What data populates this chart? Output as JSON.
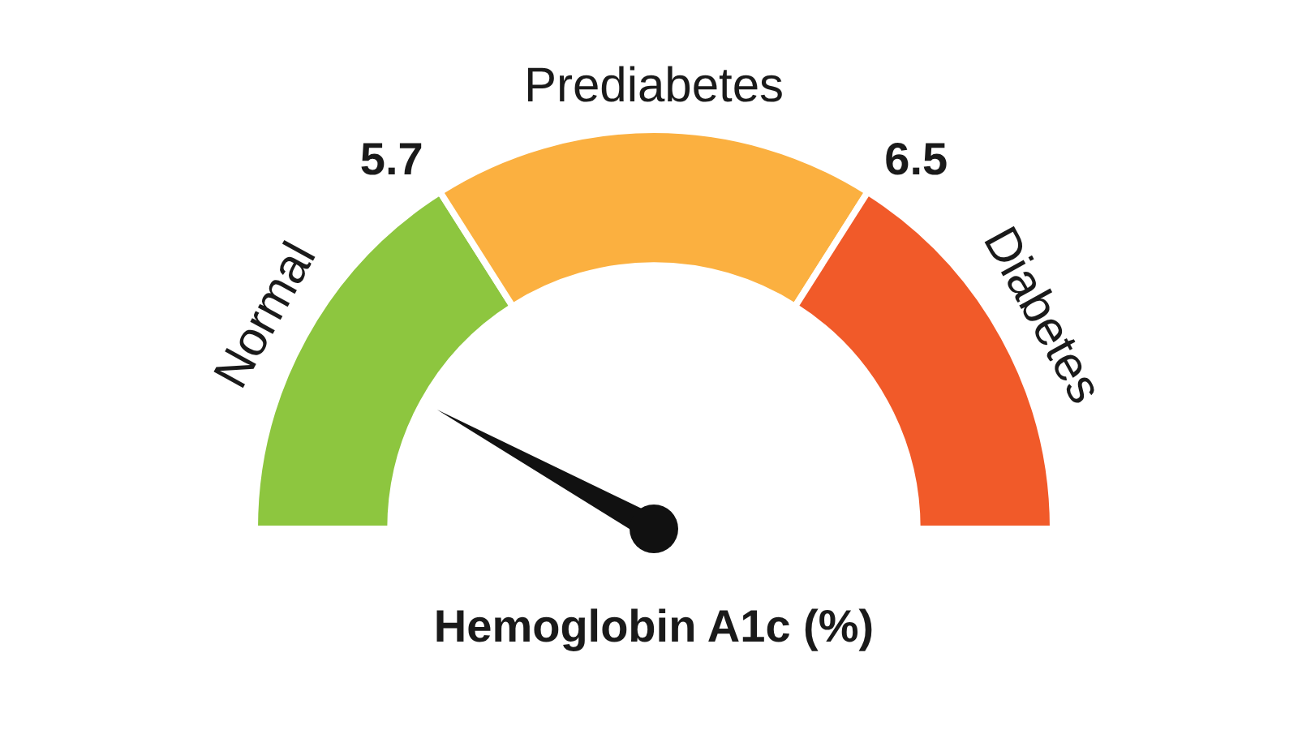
{
  "chart_data": {
    "type": "donut",
    "xlabel": "Hemoglobin A1c (%)",
    "categories": [
      "Normal",
      "Prediabetes",
      "Diabetes"
    ],
    "values": [
      32,
      36,
      32
    ],
    "colors": [
      "#8dc63f",
      "#fbb040",
      "#f15a29"
    ],
    "needle": "Normal",
    "annotations": [
      "5.7",
      "6.5"
    ]
  }
}
